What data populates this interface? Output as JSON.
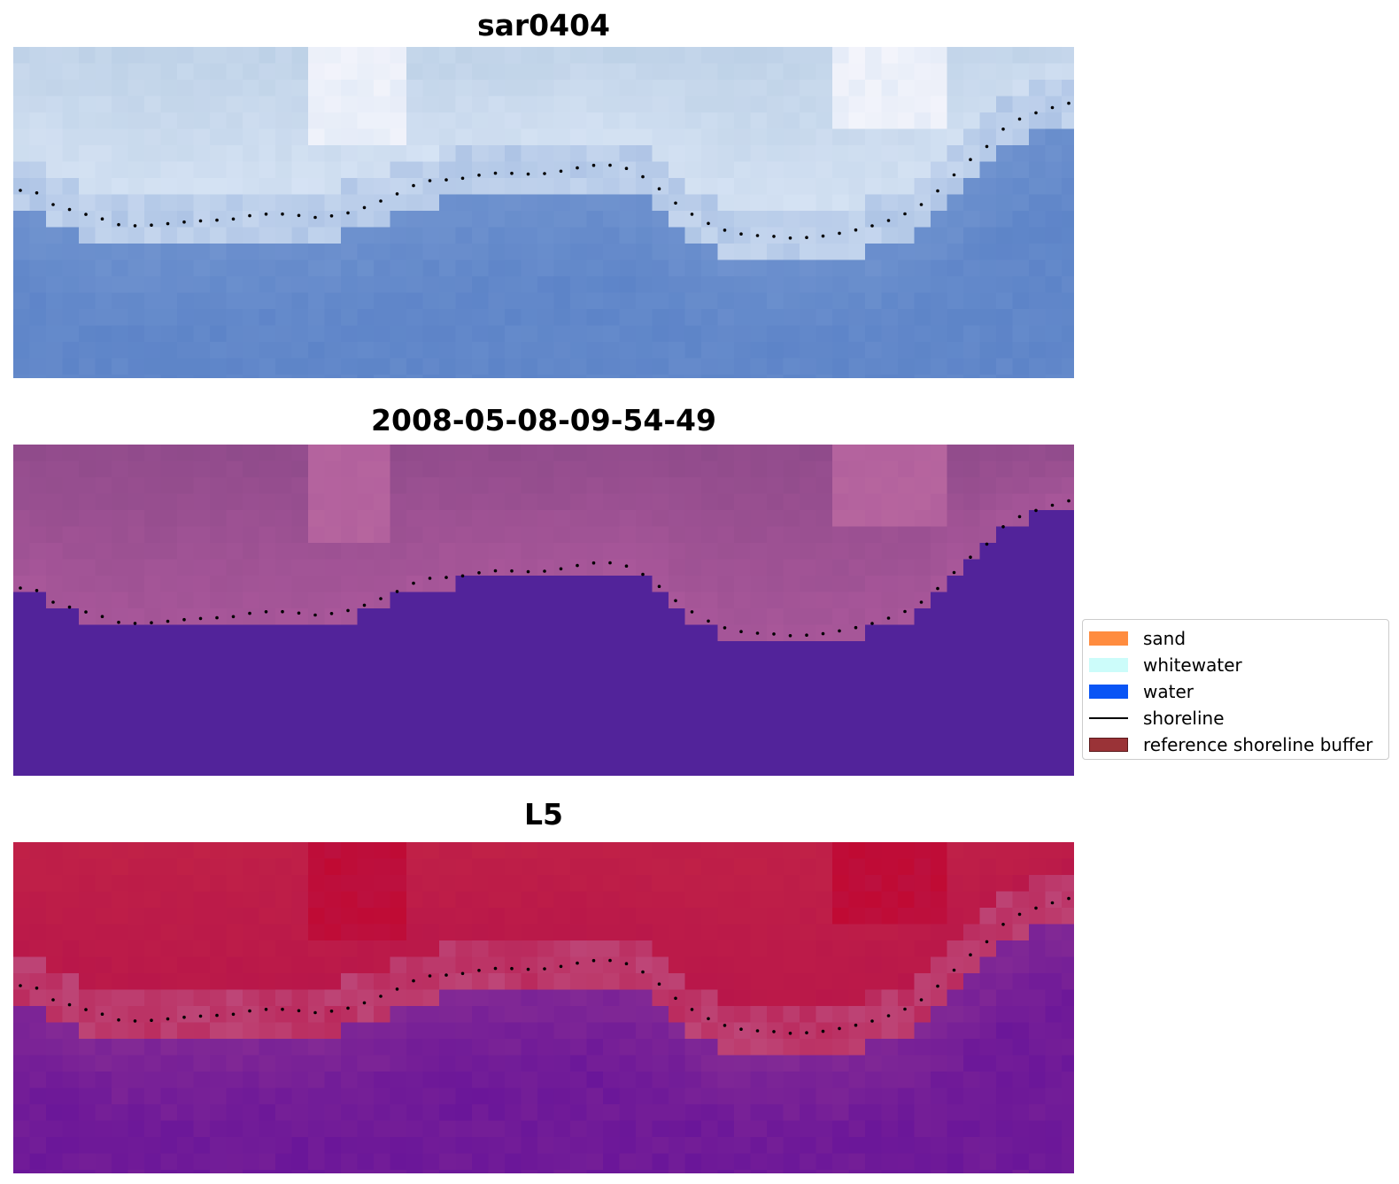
{
  "panels": [
    {
      "title": "sar0404",
      "colors": {
        "land_top": "#bcd0e6",
        "land_mid": "#d6e3f4",
        "band": "#9db7df",
        "sea": "#5d84c8",
        "highlight": "#f3f4fb"
      }
    },
    {
      "title": "2008-05-08-09-54-49",
      "colors": {
        "land_top": "#8e4a8a",
        "land_mid": "#a9579a",
        "band": "#a9579a",
        "sea": "#52239a",
        "highlight": "#b8679f"
      }
    },
    {
      "title": "L5",
      "colors": {
        "land_top": "#c12247",
        "land_mid": "#b8164a",
        "band": "#c05a8a",
        "sea": "#6a1699",
        "highlight": "#c00a33"
      }
    }
  ],
  "legend": {
    "items": [
      {
        "label": "sand",
        "color": "#ff8c3f",
        "kind": "patch",
        "icon": "sand-swatch"
      },
      {
        "label": "whitewater",
        "color": "#ccfcfa",
        "kind": "patch",
        "icon": "whitewater-swatch"
      },
      {
        "label": "water",
        "color": "#0a55f5",
        "kind": "patch",
        "icon": "water-swatch"
      },
      {
        "label": "shoreline",
        "color": "#000000",
        "kind": "line",
        "icon": "shoreline-line"
      },
      {
        "label": "reference shoreline buffer",
        "color": "#9a3337",
        "kind": "patch",
        "icon": "buffer-swatch"
      }
    ]
  }
}
